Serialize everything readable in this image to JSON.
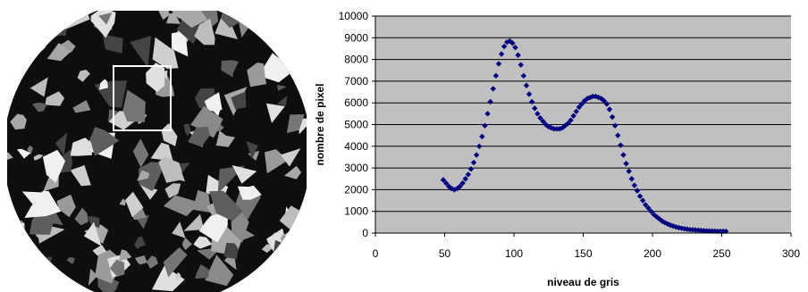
{
  "image": {
    "description_icon": "ct-scan-icon"
  },
  "chart_data": {
    "type": "scatter",
    "xlabel": "niveau de gris",
    "ylabel": "nombre de pixel",
    "xlim": [
      0,
      300
    ],
    "ylim": [
      0,
      10000
    ],
    "xticks": [
      "0",
      "50",
      "100",
      "150",
      "200",
      "250",
      "300"
    ],
    "yticks": [
      "0",
      "1000",
      "2000",
      "3000",
      "4000",
      "5000",
      "6000",
      "7000",
      "8000",
      "9000",
      "10000"
    ],
    "grid": "horizontal",
    "plot_background": "#c0c0c0",
    "series": [
      {
        "color": "#000080",
        "marker": "diamond",
        "x": [
          49,
          51,
          53,
          55,
          57,
          59,
          61,
          63,
          65,
          67,
          69,
          71,
          73,
          75,
          77,
          79,
          81,
          83,
          85,
          87,
          89,
          91,
          93,
          95,
          97,
          99,
          101,
          103,
          105,
          107,
          109,
          111,
          113,
          115,
          117,
          119,
          121,
          123,
          125,
          127,
          129,
          131,
          133,
          135,
          137,
          139,
          141,
          143,
          145,
          147,
          149,
          151,
          153,
          155,
          157,
          159,
          161,
          163,
          165,
          167,
          169,
          171,
          173,
          175,
          177,
          179,
          181,
          183,
          185,
          187,
          189,
          191,
          193,
          195,
          197,
          199,
          201,
          203,
          205,
          207,
          209,
          211,
          213,
          215,
          217,
          219,
          221,
          223,
          225,
          227,
          229,
          231,
          233,
          235,
          237,
          239,
          241,
          243,
          245,
          247,
          249,
          251,
          253
        ],
        "y": [
          2450,
          2300,
          2150,
          2050,
          2000,
          2050,
          2150,
          2300,
          2500,
          2700,
          2950,
          3250,
          3600,
          4000,
          4450,
          4950,
          5500,
          6050,
          6650,
          7250,
          7800,
          8250,
          8600,
          8800,
          8850,
          8750,
          8550,
          8200,
          7750,
          7250,
          6800,
          6400,
          6050,
          5750,
          5500,
          5300,
          5150,
          5000,
          4900,
          4850,
          4800,
          4800,
          4800,
          4850,
          4950,
          5050,
          5200,
          5400,
          5600,
          5800,
          5950,
          6100,
          6200,
          6250,
          6300,
          6300,
          6250,
          6200,
          6100,
          5950,
          5700,
          5350,
          4950,
          4500,
          4050,
          3600,
          3200,
          2850,
          2500,
          2200,
          1950,
          1700,
          1500,
          1300,
          1150,
          1000,
          850,
          750,
          650,
          550,
          480,
          420,
          360,
          320,
          280,
          250,
          220,
          200,
          180,
          160,
          150,
          140,
          130,
          120,
          110,
          100,
          100,
          90,
          90,
          80,
          80,
          80,
          80
        ]
      }
    ]
  }
}
